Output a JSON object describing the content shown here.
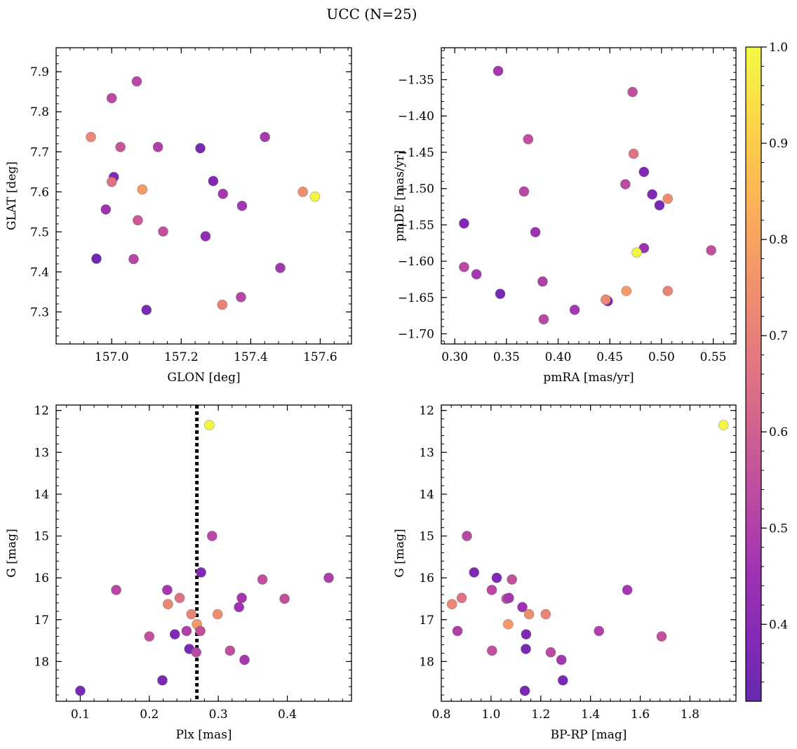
{
  "figure": {
    "title": "UCC (N=25)"
  },
  "colorbar": {
    "colormap": "plasma",
    "range": [
      0.32,
      1.0
    ],
    "ticks": [
      0.4,
      0.5,
      0.6,
      0.7,
      0.8,
      0.9,
      1.0
    ],
    "tick_labels": [
      "0.4",
      "0.5",
      "0.6",
      "0.7",
      "0.8",
      "0.9",
      "1.0"
    ]
  },
  "chart_data": [
    {
      "type": "scatter",
      "xlabel": "GLON [deg]",
      "ylabel": "GLAT [deg]",
      "xlim": [
        156.84,
        157.69
      ],
      "ylim": [
        7.22,
        7.96
      ],
      "xticks": [
        157.0,
        157.2,
        157.4,
        157.6
      ],
      "xtick_labels": [
        "157.0",
        "157.2",
        "157.4",
        "157.6"
      ],
      "yticks": [
        7.3,
        7.4,
        7.5,
        7.6,
        7.7,
        7.8,
        7.9
      ],
      "ytick_labels": [
        "7.3",
        "7.4",
        "7.5",
        "7.6",
        "7.7",
        "7.8",
        "7.9"
      ],
      "points": [
        {
          "x": 157.072,
          "y": 7.876,
          "c": 0.52
        },
        {
          "x": 157.0,
          "y": 7.834,
          "c": 0.53
        },
        {
          "x": 156.94,
          "y": 7.737,
          "c": 0.72
        },
        {
          "x": 157.025,
          "y": 7.712,
          "c": 0.57
        },
        {
          "x": 157.133,
          "y": 7.712,
          "c": 0.5
        },
        {
          "x": 157.255,
          "y": 7.709,
          "c": 0.36
        },
        {
          "x": 157.441,
          "y": 7.737,
          "c": 0.48
        },
        {
          "x": 157.006,
          "y": 7.637,
          "c": 0.38
        },
        {
          "x": 157.0,
          "y": 7.625,
          "c": 0.66
        },
        {
          "x": 157.088,
          "y": 7.606,
          "c": 0.77
        },
        {
          "x": 157.292,
          "y": 7.627,
          "c": 0.38
        },
        {
          "x": 157.32,
          "y": 7.595,
          "c": 0.47
        },
        {
          "x": 157.55,
          "y": 7.6,
          "c": 0.74
        },
        {
          "x": 157.585,
          "y": 7.588,
          "c": 0.99
        },
        {
          "x": 156.983,
          "y": 7.556,
          "c": 0.45
        },
        {
          "x": 157.375,
          "y": 7.565,
          "c": 0.47
        },
        {
          "x": 157.075,
          "y": 7.529,
          "c": 0.58
        },
        {
          "x": 157.148,
          "y": 7.501,
          "c": 0.55
        },
        {
          "x": 157.27,
          "y": 7.489,
          "c": 0.42
        },
        {
          "x": 156.956,
          "y": 7.433,
          "c": 0.34
        },
        {
          "x": 157.063,
          "y": 7.432,
          "c": 0.52
        },
        {
          "x": 157.485,
          "y": 7.41,
          "c": 0.47
        },
        {
          "x": 157.372,
          "y": 7.337,
          "c": 0.52
        },
        {
          "x": 157.318,
          "y": 7.318,
          "c": 0.71
        },
        {
          "x": 157.1,
          "y": 7.305,
          "c": 0.36
        }
      ]
    },
    {
      "type": "scatter",
      "xlabel": "pmRA [mas/yr]",
      "ylabel": "pmDE [mas/yr]",
      "xlim": [
        0.287,
        0.572
      ],
      "ylim": [
        -1.714,
        -1.306
      ],
      "xticks": [
        0.3,
        0.35,
        0.4,
        0.45,
        0.5,
        0.55
      ],
      "xtick_labels": [
        "0.30",
        "0.35",
        "0.40",
        "0.45",
        "0.50",
        "0.55"
      ],
      "yticks": [
        -1.7,
        -1.65,
        -1.6,
        -1.55,
        -1.5,
        -1.45,
        -1.4,
        -1.35
      ],
      "ytick_labels": [
        "−1.70",
        "−1.65",
        "−1.60",
        "−1.55",
        "−1.50",
        "−1.45",
        "−1.40",
        "−1.35"
      ],
      "points": [
        {
          "x": 0.342,
          "y": -1.338,
          "c": 0.47
        },
        {
          "x": 0.472,
          "y": -1.367,
          "c": 0.55
        },
        {
          "x": 0.371,
          "y": -1.432,
          "c": 0.55
        },
        {
          "x": 0.473,
          "y": -1.452,
          "c": 0.66
        },
        {
          "x": 0.483,
          "y": -1.477,
          "c": 0.38
        },
        {
          "x": 0.465,
          "y": -1.494,
          "c": 0.53
        },
        {
          "x": 0.367,
          "y": -1.504,
          "c": 0.52
        },
        {
          "x": 0.491,
          "y": -1.508,
          "c": 0.38
        },
        {
          "x": 0.506,
          "y": -1.514,
          "c": 0.74
        },
        {
          "x": 0.498,
          "y": -1.523,
          "c": 0.36
        },
        {
          "x": 0.309,
          "y": -1.548,
          "c": 0.38
        },
        {
          "x": 0.378,
          "y": -1.56,
          "c": 0.45
        },
        {
          "x": 0.483,
          "y": -1.582,
          "c": 0.45
        },
        {
          "x": 0.548,
          "y": -1.585,
          "c": 0.55
        },
        {
          "x": 0.476,
          "y": -1.588,
          "c": 0.99
        },
        {
          "x": 0.309,
          "y": -1.608,
          "c": 0.52
        },
        {
          "x": 0.321,
          "y": -1.618,
          "c": 0.47
        },
        {
          "x": 0.385,
          "y": -1.628,
          "c": 0.5
        },
        {
          "x": 0.466,
          "y": -1.641,
          "c": 0.77
        },
        {
          "x": 0.506,
          "y": -1.641,
          "c": 0.71
        },
        {
          "x": 0.344,
          "y": -1.645,
          "c": 0.36
        },
        {
          "x": 0.448,
          "y": -1.655,
          "c": 0.36
        },
        {
          "x": 0.446,
          "y": -1.653,
          "c": 0.72
        },
        {
          "x": 0.416,
          "y": -1.667,
          "c": 0.47
        },
        {
          "x": 0.386,
          "y": -1.68,
          "c": 0.52
        }
      ]
    },
    {
      "type": "scatter",
      "xlabel": "Plx [mas]",
      "ylabel": "G [mag]",
      "xlim": [
        0.065,
        0.493
      ],
      "ylim": [
        18.95,
        11.87
      ],
      "y_inverted": true,
      "xticks": [
        0.1,
        0.2,
        0.3,
        0.4
      ],
      "xtick_labels": [
        "0.1",
        "0.2",
        "0.3",
        "0.4"
      ],
      "yticks": [
        12,
        13,
        14,
        15,
        16,
        17,
        18
      ],
      "ytick_labels": [
        "12",
        "13",
        "14",
        "15",
        "16",
        "17",
        "18"
      ],
      "vline": {
        "x": 0.269,
        "style": "dotted",
        "color": "#000000"
      },
      "points": [
        {
          "x": 0.287,
          "y": 12.35,
          "c": 0.99
        },
        {
          "x": 0.291,
          "y": 15.0,
          "c": 0.52
        },
        {
          "x": 0.46,
          "y": 16.0,
          "c": 0.5
        },
        {
          "x": 0.364,
          "y": 16.04,
          "c": 0.55
        },
        {
          "x": 0.275,
          "y": 15.87,
          "c": 0.38
        },
        {
          "x": 0.152,
          "y": 16.29,
          "c": 0.52
        },
        {
          "x": 0.226,
          "y": 16.29,
          "c": 0.47
        },
        {
          "x": 0.244,
          "y": 16.48,
          "c": 0.66
        },
        {
          "x": 0.334,
          "y": 16.48,
          "c": 0.47
        },
        {
          "x": 0.396,
          "y": 16.5,
          "c": 0.55
        },
        {
          "x": 0.227,
          "y": 16.63,
          "c": 0.72
        },
        {
          "x": 0.33,
          "y": 16.7,
          "c": 0.45
        },
        {
          "x": 0.261,
          "y": 16.87,
          "c": 0.71
        },
        {
          "x": 0.299,
          "y": 16.87,
          "c": 0.74
        },
        {
          "x": 0.269,
          "y": 17.11,
          "c": 0.77
        },
        {
          "x": 0.254,
          "y": 17.27,
          "c": 0.5
        },
        {
          "x": 0.274,
          "y": 17.27,
          "c": 0.55
        },
        {
          "x": 0.2,
          "y": 17.4,
          "c": 0.55
        },
        {
          "x": 0.237,
          "y": 17.35,
          "c": 0.38
        },
        {
          "x": 0.258,
          "y": 17.7,
          "c": 0.36
        },
        {
          "x": 0.268,
          "y": 17.78,
          "c": 0.53
        },
        {
          "x": 0.317,
          "y": 17.74,
          "c": 0.55
        },
        {
          "x": 0.338,
          "y": 17.96,
          "c": 0.47
        },
        {
          "x": 0.219,
          "y": 18.45,
          "c": 0.36
        },
        {
          "x": 0.1,
          "y": 18.7,
          "c": 0.36
        }
      ]
    },
    {
      "type": "scatter",
      "xlabel": "BP-RP [mag]",
      "ylabel": "G [mag]",
      "xlim": [
        0.8,
        1.985
      ],
      "ylim": [
        18.95,
        11.87
      ],
      "y_inverted": true,
      "xticks": [
        0.8,
        1.0,
        1.2,
        1.4,
        1.6,
        1.8
      ],
      "xtick_labels": [
        "0.8",
        "1.0",
        "1.2",
        "1.4",
        "1.6",
        "1.8"
      ],
      "yticks": [
        12,
        13,
        14,
        15,
        16,
        17,
        18
      ],
      "ytick_labels": [
        "12",
        "13",
        "14",
        "15",
        "16",
        "17",
        "18"
      ],
      "points": [
        {
          "x": 1.935,
          "y": 12.35,
          "c": 0.99
        },
        {
          "x": 0.903,
          "y": 15.0,
          "c": 0.52
        },
        {
          "x": 0.932,
          "y": 15.87,
          "c": 0.38
        },
        {
          "x": 1.023,
          "y": 16.0,
          "c": 0.38
        },
        {
          "x": 1.084,
          "y": 16.04,
          "c": 0.55
        },
        {
          "x": 1.548,
          "y": 16.29,
          "c": 0.47
        },
        {
          "x": 1.003,
          "y": 16.29,
          "c": 0.52
        },
        {
          "x": 0.882,
          "y": 16.48,
          "c": 0.66
        },
        {
          "x": 1.062,
          "y": 16.5,
          "c": 0.55
        },
        {
          "x": 1.072,
          "y": 16.48,
          "c": 0.47
        },
        {
          "x": 0.843,
          "y": 16.63,
          "c": 0.72
        },
        {
          "x": 1.126,
          "y": 16.7,
          "c": 0.45
        },
        {
          "x": 1.153,
          "y": 16.87,
          "c": 0.74
        },
        {
          "x": 1.22,
          "y": 16.87,
          "c": 0.71
        },
        {
          "x": 1.069,
          "y": 17.11,
          "c": 0.77
        },
        {
          "x": 0.865,
          "y": 17.27,
          "c": 0.5
        },
        {
          "x": 1.434,
          "y": 17.27,
          "c": 0.5
        },
        {
          "x": 1.141,
          "y": 17.35,
          "c": 0.38
        },
        {
          "x": 1.686,
          "y": 17.4,
          "c": 0.55
        },
        {
          "x": 1.14,
          "y": 17.7,
          "c": 0.36
        },
        {
          "x": 1.004,
          "y": 17.74,
          "c": 0.55
        },
        {
          "x": 1.24,
          "y": 17.78,
          "c": 0.53
        },
        {
          "x": 1.283,
          "y": 17.96,
          "c": 0.47
        },
        {
          "x": 1.289,
          "y": 18.45,
          "c": 0.36
        },
        {
          "x": 1.136,
          "y": 18.7,
          "c": 0.36
        }
      ]
    }
  ]
}
